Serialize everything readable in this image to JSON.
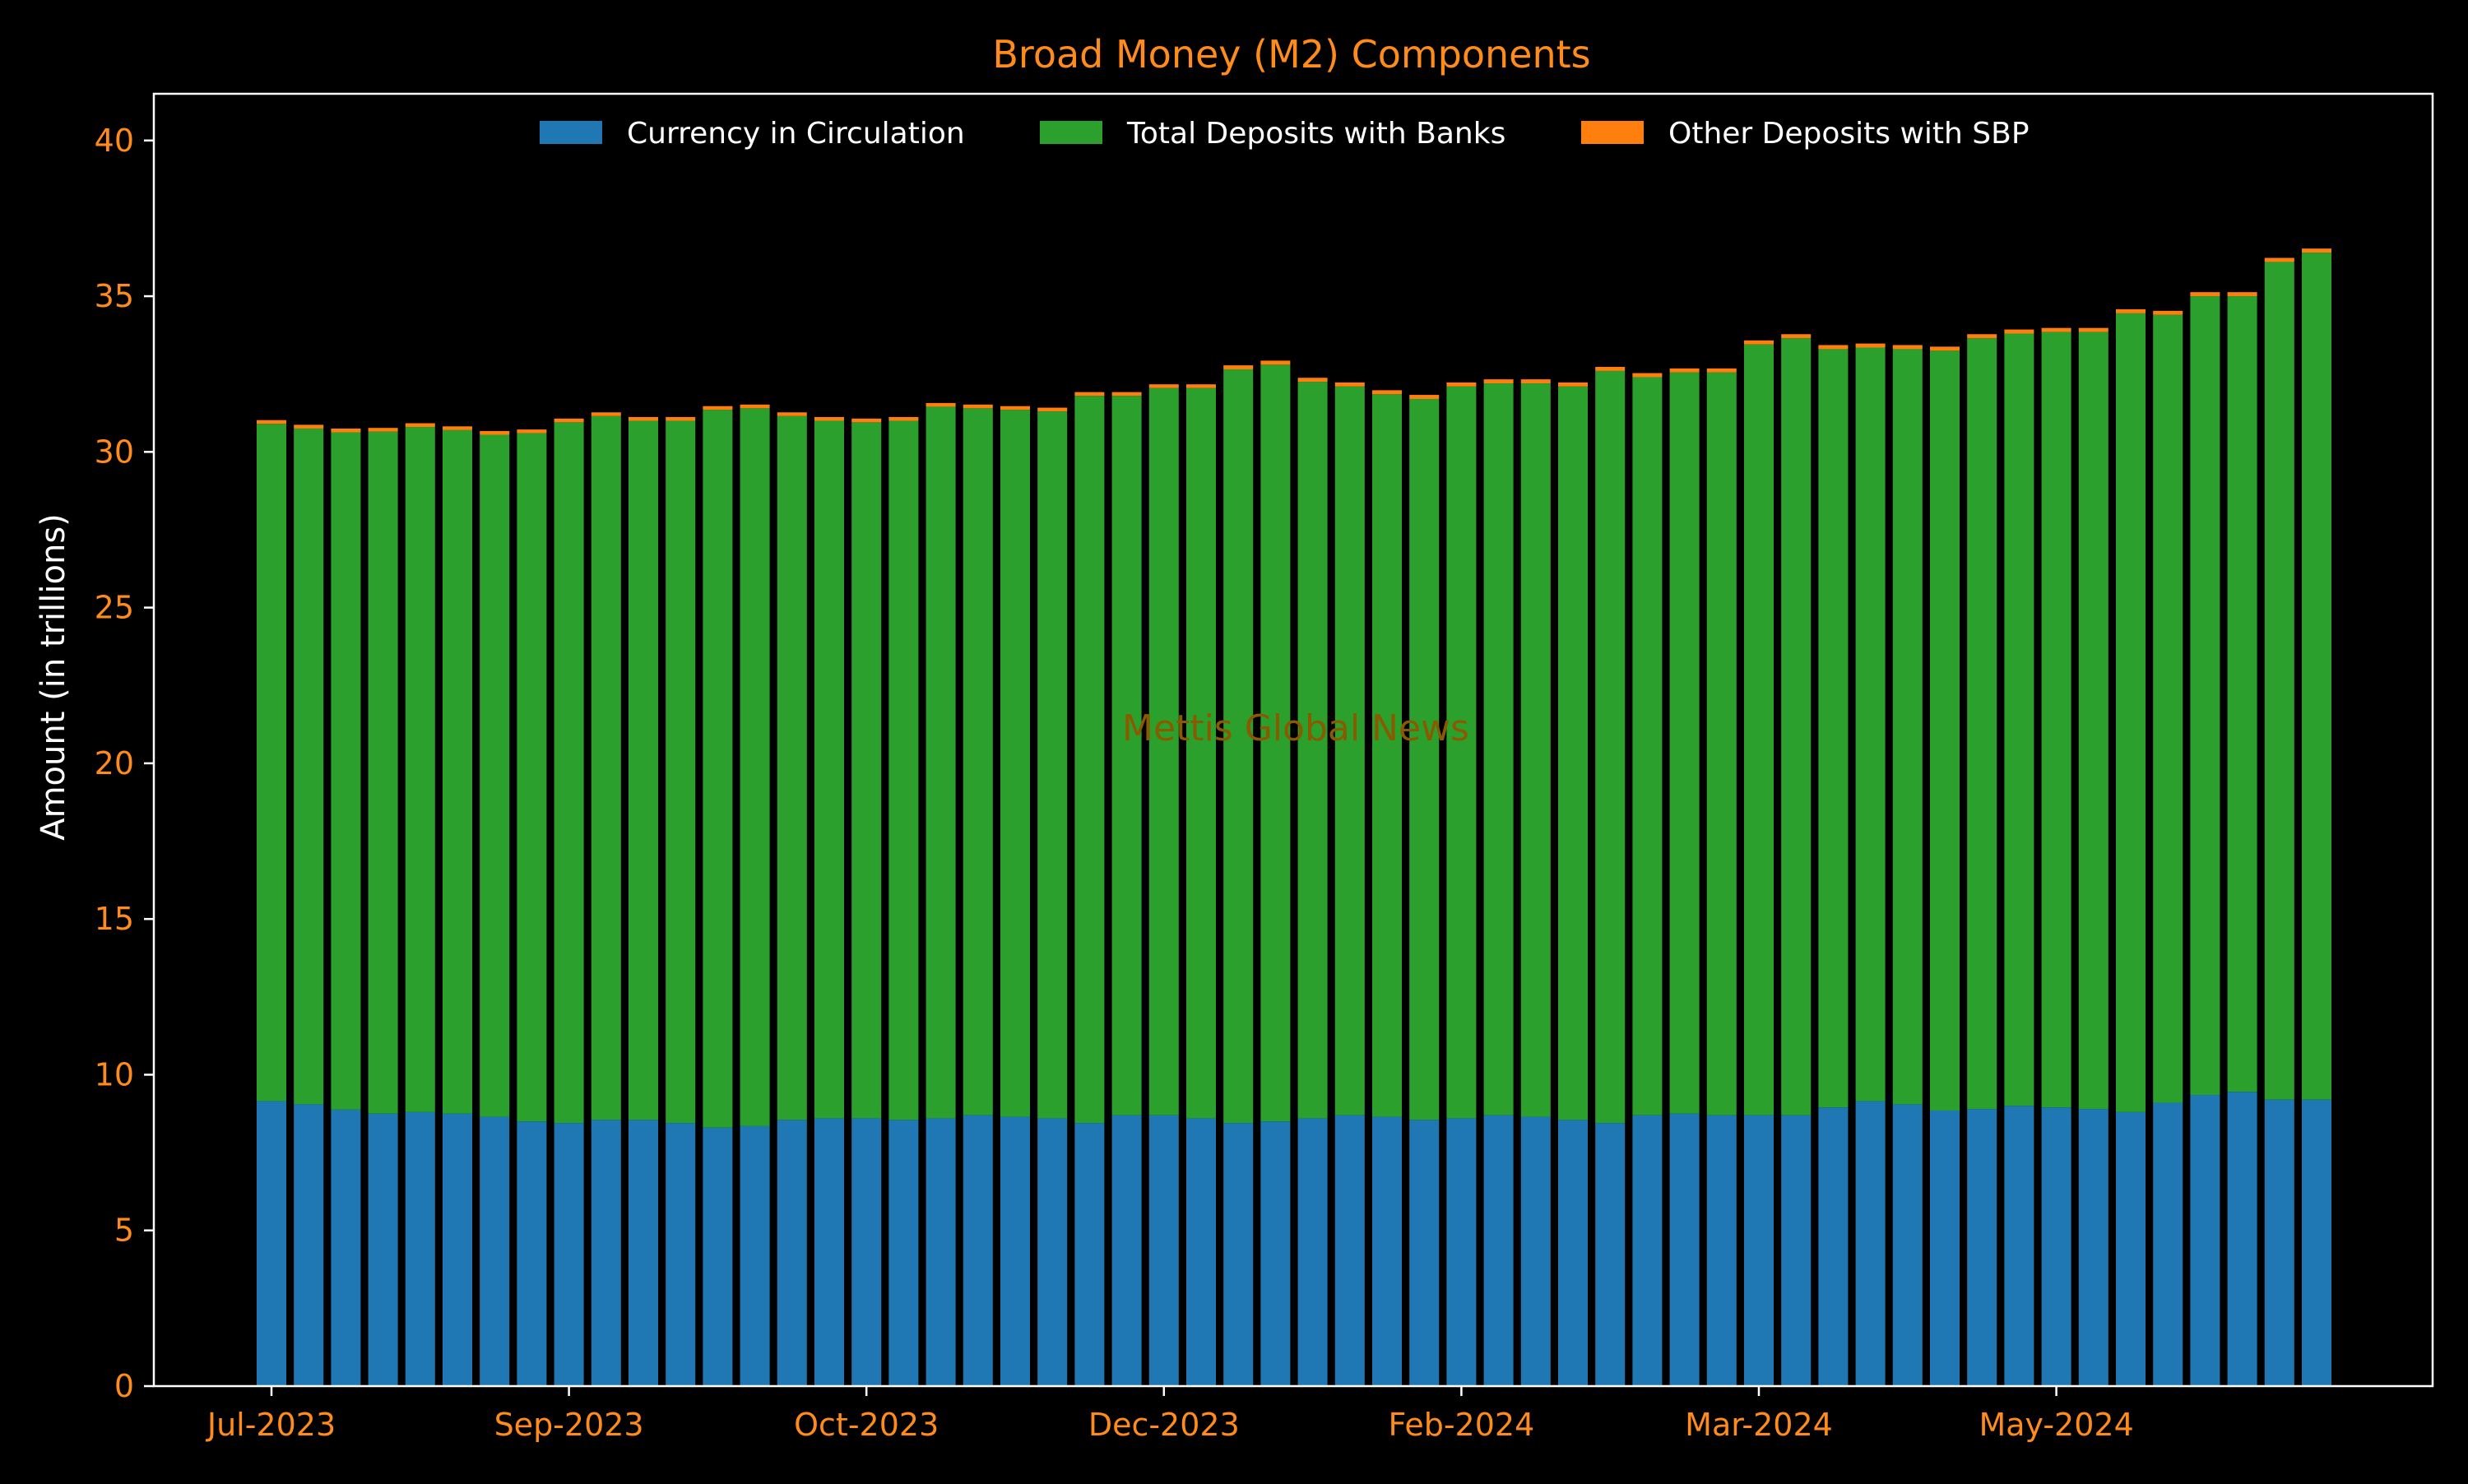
{
  "chart_data": {
    "type": "bar",
    "stacked": true,
    "title": "Broad Money (M2) Components",
    "ylabel": "Amount (in trillions)",
    "xlabel": "",
    "ylim": [
      0,
      41.5
    ],
    "yticks": [
      0,
      5,
      10,
      15,
      20,
      25,
      30,
      35,
      40
    ],
    "x_tick_labels": [
      {
        "label": "Jul-2023",
        "index": 0
      },
      {
        "label": "Sep-2023",
        "index": 8
      },
      {
        "label": "Oct-2023",
        "index": 16
      },
      {
        "label": "Dec-2023",
        "index": 24
      },
      {
        "label": "Feb-2024",
        "index": 32
      },
      {
        "label": "Mar-2024",
        "index": 40
      },
      {
        "label": "May-2024",
        "index": 48
      }
    ],
    "grid": false,
    "legend_position": "top-center",
    "watermark": "Mettis Global News",
    "colors": {
      "background": "#000000",
      "title": "#ff8c1a",
      "ticks": "#ff8c1a",
      "axis_label": "#ffffff",
      "frame": "#ffffff",
      "watermark": "#8a5a00"
    },
    "series": [
      {
        "name": "Currency in Circulation",
        "color": "#1f77b4",
        "values": [
          9.15,
          9.05,
          8.88,
          8.75,
          8.8,
          8.75,
          8.65,
          8.5,
          8.45,
          8.55,
          8.55,
          8.45,
          8.3,
          8.35,
          8.55,
          8.6,
          8.6,
          8.55,
          8.6,
          8.7,
          8.65,
          8.6,
          8.45,
          8.7,
          8.7,
          8.6,
          8.45,
          8.5,
          8.6,
          8.7,
          8.65,
          8.55,
          8.6,
          8.7,
          8.65,
          8.55,
          8.45,
          8.7,
          8.75,
          8.7,
          8.7,
          8.7,
          8.95,
          9.15,
          9.05,
          8.85,
          8.9,
          9.0,
          8.95,
          8.9,
          8.8,
          9.1,
          9.35,
          9.45,
          9.2,
          9.2
        ]
      },
      {
        "name": "Total Deposits with Banks",
        "color": "#2ca02c",
        "values": [
          21.75,
          21.7,
          21.75,
          21.9,
          22.0,
          21.95,
          21.9,
          22.1,
          22.5,
          22.6,
          22.45,
          22.55,
          23.05,
          23.05,
          22.6,
          22.4,
          22.35,
          22.45,
          22.85,
          22.7,
          22.7,
          22.7,
          23.35,
          23.1,
          23.35,
          23.45,
          24.2,
          24.3,
          23.65,
          23.4,
          23.2,
          23.15,
          23.5,
          23.5,
          23.55,
          23.55,
          24.15,
          23.7,
          23.8,
          23.85,
          24.75,
          24.95,
          24.35,
          24.2,
          24.25,
          24.4,
          24.75,
          24.8,
          24.9,
          24.95,
          25.65,
          25.3,
          25.65,
          25.55,
          26.9,
          27.2
        ]
      },
      {
        "name": "Other Deposits with SBP",
        "color": "#ff7f0e",
        "values": [
          0.12,
          0.12,
          0.12,
          0.12,
          0.12,
          0.12,
          0.12,
          0.12,
          0.12,
          0.12,
          0.12,
          0.12,
          0.12,
          0.12,
          0.12,
          0.12,
          0.12,
          0.12,
          0.12,
          0.12,
          0.12,
          0.12,
          0.12,
          0.12,
          0.12,
          0.12,
          0.13,
          0.13,
          0.13,
          0.13,
          0.13,
          0.13,
          0.13,
          0.13,
          0.13,
          0.13,
          0.13,
          0.13,
          0.13,
          0.13,
          0.13,
          0.13,
          0.13,
          0.13,
          0.13,
          0.13,
          0.13,
          0.13,
          0.13,
          0.13,
          0.13,
          0.13,
          0.13,
          0.13,
          0.13,
          0.13
        ]
      }
    ]
  }
}
